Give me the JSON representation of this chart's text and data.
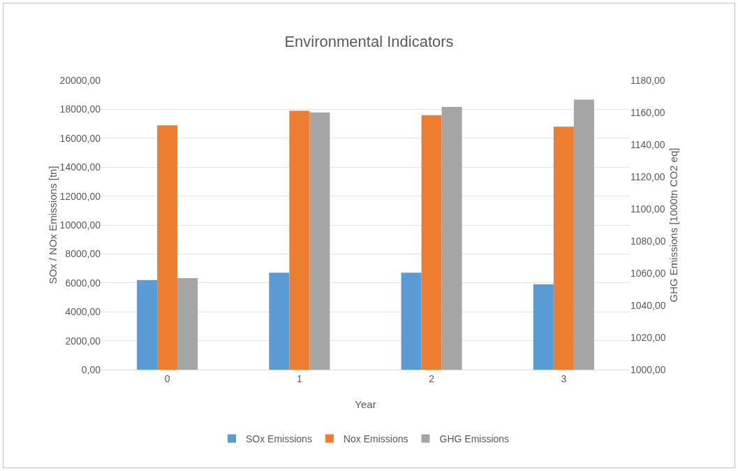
{
  "chart_data": {
    "type": "bar",
    "title": "Environmental Indicators",
    "xlabel": "Year",
    "ylabel": "SOx / NOx Emissions [tn]",
    "y2label": "GHG Emissions [1000tn CO2 eq]",
    "categories": [
      "0",
      "1",
      "2",
      "3"
    ],
    "series": [
      {
        "name": "SOx Emissions",
        "color": "#5b9bd5",
        "values": [
          6200,
          6700,
          6700,
          5900
        ]
      },
      {
        "name": "Nox Emissions",
        "color": "#ed7d31",
        "values": [
          16900,
          17900,
          17600,
          16800
        ]
      },
      {
        "name": "GHG Emissions",
        "color": "#a5a5a5",
        "axis": "y2",
        "values": [
          1057,
          1160,
          1163.5,
          1168
        ]
      }
    ],
    "ylim": [
      0,
      20000
    ],
    "yticks": [
      {
        "value": 0,
        "label": "0,00"
      },
      {
        "value": 2000,
        "label": "2000,00"
      },
      {
        "value": 4000,
        "label": "4000,00"
      },
      {
        "value": 6000,
        "label": "6000,00"
      },
      {
        "value": 8000,
        "label": "8000,00"
      },
      {
        "value": 10000,
        "label": "10000,00"
      },
      {
        "value": 12000,
        "label": "12000,00"
      },
      {
        "value": 14000,
        "label": "14000,00"
      },
      {
        "value": 16000,
        "label": "16000,00"
      },
      {
        "value": 18000,
        "label": "18000,00"
      },
      {
        "value": 20000,
        "label": "20000,00"
      }
    ],
    "y2lim": [
      1000,
      1180
    ],
    "y2ticks": [
      {
        "value": 1000,
        "label": "1000,00"
      },
      {
        "value": 1020,
        "label": "1020,00"
      },
      {
        "value": 1040,
        "label": "1040,00"
      },
      {
        "value": 1060,
        "label": "1060,00"
      },
      {
        "value": 1080,
        "label": "1080,00"
      },
      {
        "value": 1100,
        "label": "1100,00"
      },
      {
        "value": 1120,
        "label": "1120,00"
      },
      {
        "value": 1140,
        "label": "1140,00"
      },
      {
        "value": 1160,
        "label": "1160,00"
      },
      {
        "value": 1180,
        "label": "1180,00"
      }
    ],
    "grid": "y",
    "legend": "bottom"
  }
}
